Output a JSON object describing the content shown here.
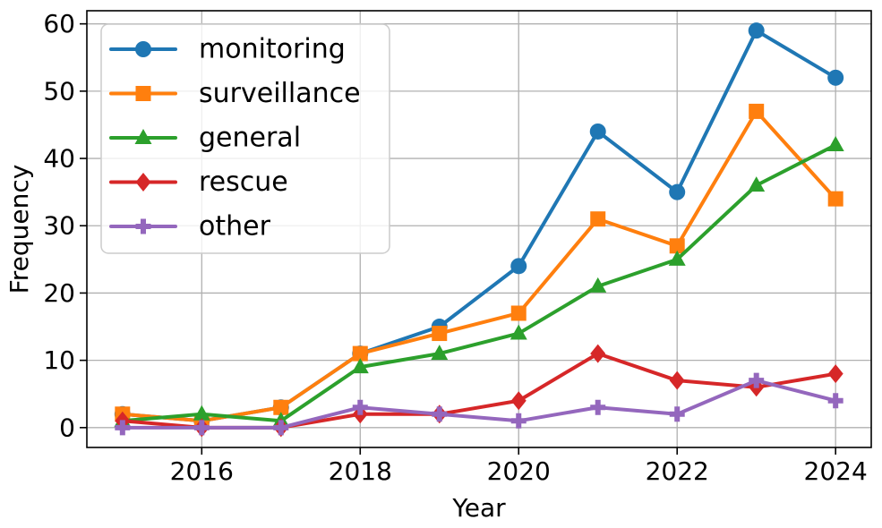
{
  "chart_data": {
    "type": "line",
    "title": "",
    "xlabel": "Year",
    "ylabel": "Frequency",
    "x": [
      2015,
      2016,
      2017,
      2018,
      2019,
      2020,
      2021,
      2022,
      2023,
      2024
    ],
    "series": [
      {
        "name": "monitoring",
        "color": "#1f77b4",
        "marker": "circle",
        "values": [
          2,
          1,
          3,
          11,
          15,
          24,
          44,
          35,
          59,
          52
        ]
      },
      {
        "name": "surveillance",
        "color": "#ff7f0e",
        "marker": "square",
        "values": [
          2,
          1,
          3,
          11,
          14,
          17,
          31,
          27,
          47,
          34
        ]
      },
      {
        "name": "general",
        "color": "#2ca02c",
        "marker": "triangle",
        "values": [
          1,
          2,
          1,
          9,
          11,
          14,
          21,
          25,
          36,
          42
        ]
      },
      {
        "name": "rescue",
        "color": "#d62728",
        "marker": "diamond",
        "values": [
          1,
          0,
          0,
          2,
          2,
          4,
          11,
          7,
          6,
          8
        ]
      },
      {
        "name": "other",
        "color": "#9467bd",
        "marker": "plus",
        "values": [
          0,
          0,
          0,
          3,
          2,
          1,
          3,
          2,
          7,
          4
        ]
      }
    ],
    "xticks": [
      2016,
      2018,
      2020,
      2022,
      2024
    ],
    "yticks": [
      0,
      10,
      20,
      30,
      40,
      50,
      60
    ],
    "xlim": [
      2014.55,
      2024.45
    ],
    "ylim": [
      -2.95,
      61.95
    ],
    "grid": true,
    "legend_position": "upper left",
    "colors": {
      "grid": "#b0b0b0",
      "spine": "#000000",
      "text": "#000000",
      "legend_border": "#cccccc",
      "legend_background": "rgba(255,255,255,0.8)",
      "background": "#ffffff"
    }
  }
}
